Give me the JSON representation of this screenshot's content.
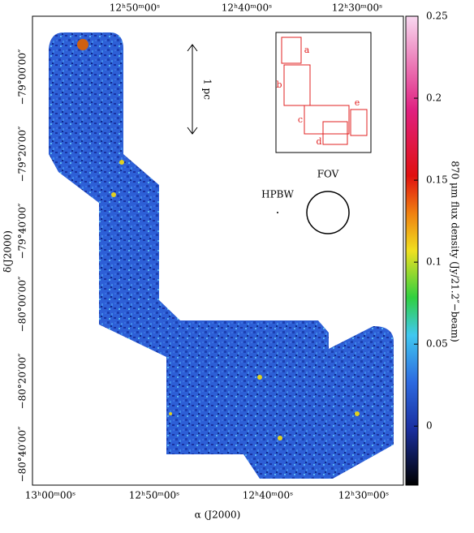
{
  "axes": {
    "top_labels": [
      "12ʰ50ᵐ00ˢ",
      "12ʰ40ᵐ00ˢ",
      "12ʰ30ᵐ00ˢ"
    ],
    "bottom_labels": [
      "13ʰ00ᵐ00ˢ",
      "12ʰ50ᵐ00ˢ",
      "12ʰ40ᵐ00ˢ",
      "12ʰ30ᵐ00ˢ"
    ],
    "left_labels": [
      "−79°00′00″",
      "−79°20′00″",
      "−79°40′00″",
      "−80°00′00″",
      "−80°20′00″",
      "−80°40′00″"
    ],
    "x_title": "α (J2000)",
    "y_title": "δ(J2000)"
  },
  "colorbar": {
    "label": "870 μm flux density (Jy/21.2″−beam)",
    "lim": [
      -0.036,
      0.25
    ],
    "ticks": [
      0,
      0.05,
      0.1,
      0.15,
      0.2,
      0.25
    ]
  },
  "annotations": {
    "scale_bar": "1 pc",
    "hpbw": "HPBW",
    "fov": "FOV"
  },
  "inset_labels": [
    "a",
    "b",
    "c",
    "d",
    "e"
  ]
}
